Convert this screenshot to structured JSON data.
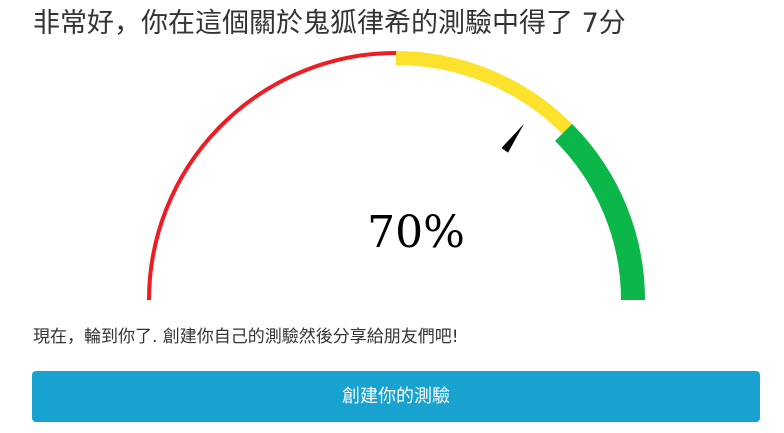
{
  "result": {
    "title": "非常好，你在這個關於鬼狐律希的測驗中得了 7分"
  },
  "gauge": {
    "score": 0.7,
    "score_label": "70%",
    "segments": [
      {
        "name": "red",
        "color": "#ee1c25",
        "from": 0.0,
        "to": 0.5
      },
      {
        "name": "yellow",
        "color": "#fde22d",
        "from": 0.5,
        "to": 0.75
      },
      {
        "name": "green",
        "color": "#0cb74a",
        "from": 0.75,
        "to": 1.0
      }
    ],
    "needle_color": "#000000"
  },
  "share": {
    "message": "現在，輪到你了. 創建你自己的測驗然後分享給朋友們吧!"
  },
  "actions": {
    "create_quiz_label": "創建你的測驗",
    "button_color": "#17a2cf"
  }
}
